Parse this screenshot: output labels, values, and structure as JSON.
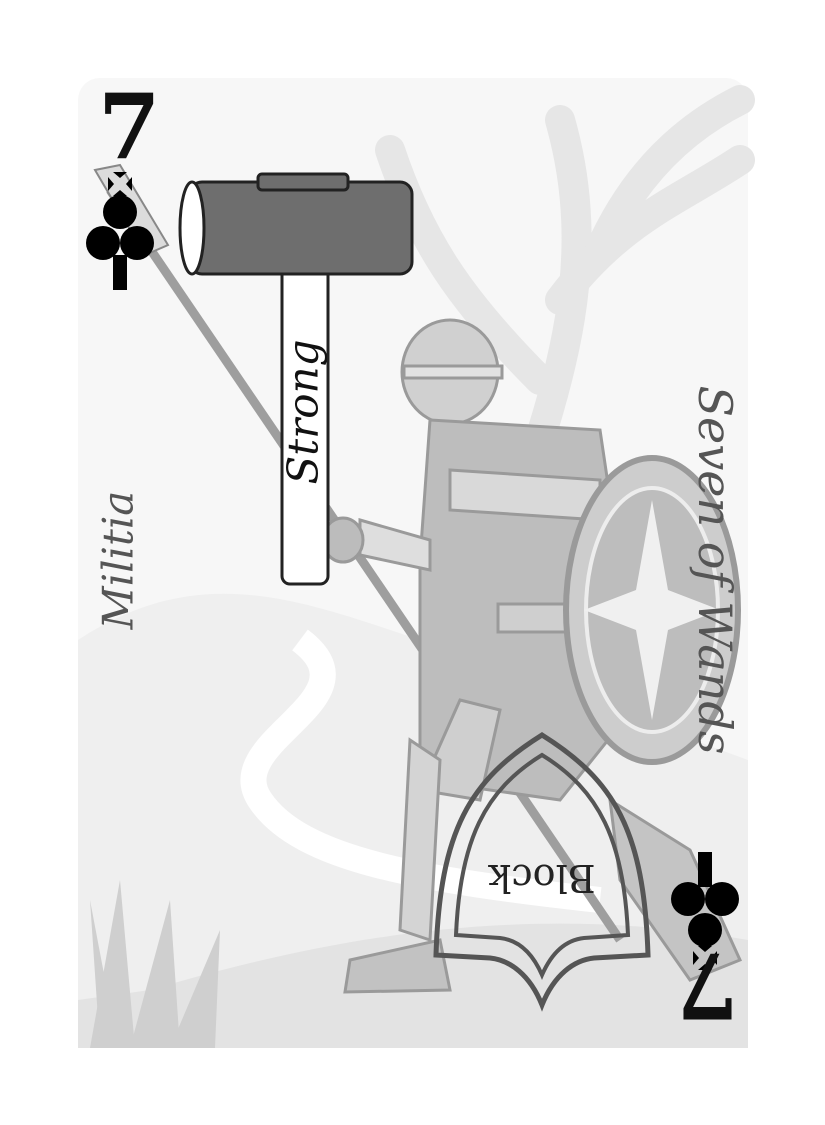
{
  "card": {
    "rank": "7",
    "suit_icon": "club-icon",
    "name": "Seven of Wands",
    "unit_type": "Militia",
    "attack_label": "Strong",
    "defense_label": "Block",
    "weapon_icon": "sledgehammer-icon",
    "defense_icon": "shield-icon"
  },
  "colors": {
    "card_bg": "#f7f7f7",
    "ink": "#111111",
    "art_gray": "#bdbdbd",
    "hammer_gray": "#6e6e6e"
  }
}
